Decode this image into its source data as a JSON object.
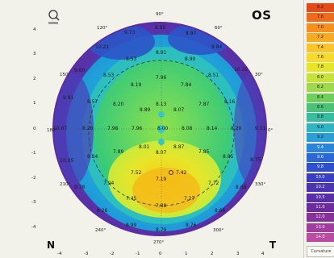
{
  "eye": "OS",
  "orientation": {
    "nasal": "N",
    "temporal": "T"
  },
  "axis_ticks_x": [
    "-4",
    "-3",
    "-2",
    "-1",
    "0",
    "1",
    "2",
    "3",
    "4"
  ],
  "axis_ticks_y": [
    "4",
    "3",
    "2",
    "1",
    "0",
    "-1",
    "-2",
    "-3",
    "-4"
  ],
  "angle_labels": [
    "90°",
    "120°",
    "60°",
    "150°",
    "30°",
    "180°",
    "0°",
    "210°",
    "330°",
    "240°",
    "300°",
    "270°"
  ],
  "values": [
    "8.95",
    "9.73",
    "8.97",
    "10.21",
    "9.84",
    "8.91",
    "8.53",
    "8.90",
    "9.60",
    "8.53",
    "7.96",
    "10.32",
    "8.19",
    "7.84",
    "8.51",
    "9.91",
    "8.57",
    "8.20",
    "8.89",
    "8.13",
    "8.07",
    "7.87",
    "8.16",
    "10.67",
    "8.26",
    "7.98",
    "7.96",
    "8.00",
    "8.08",
    "8.14",
    "8.20",
    "9.31",
    "10.05",
    "8.24",
    "7.89",
    "8.01",
    "8.07",
    "8.87",
    "7.85",
    "8.85",
    "8.75",
    "7.52",
    "7.42",
    "9.78",
    "7.94",
    "7.19",
    "7.72",
    "8.68",
    "7.45",
    "7.27",
    "7.88",
    "8.26",
    "8.66",
    "8.99",
    "8.79",
    "8.76"
  ],
  "color_scale": [
    "8.2",
    "7.6",
    "7.0",
    "7.2",
    "7.4",
    "7.6",
    "7.8",
    "8.0",
    "8.2",
    "8.4",
    "8.6",
    "8.8",
    "9.0",
    "9.2",
    "9.4",
    "9.6",
    "9.8",
    "10.0",
    "10.2",
    "10.5",
    "11.0",
    "12.0",
    "13.0",
    "14.0"
  ],
  "scale_footer": "Curvature"
}
